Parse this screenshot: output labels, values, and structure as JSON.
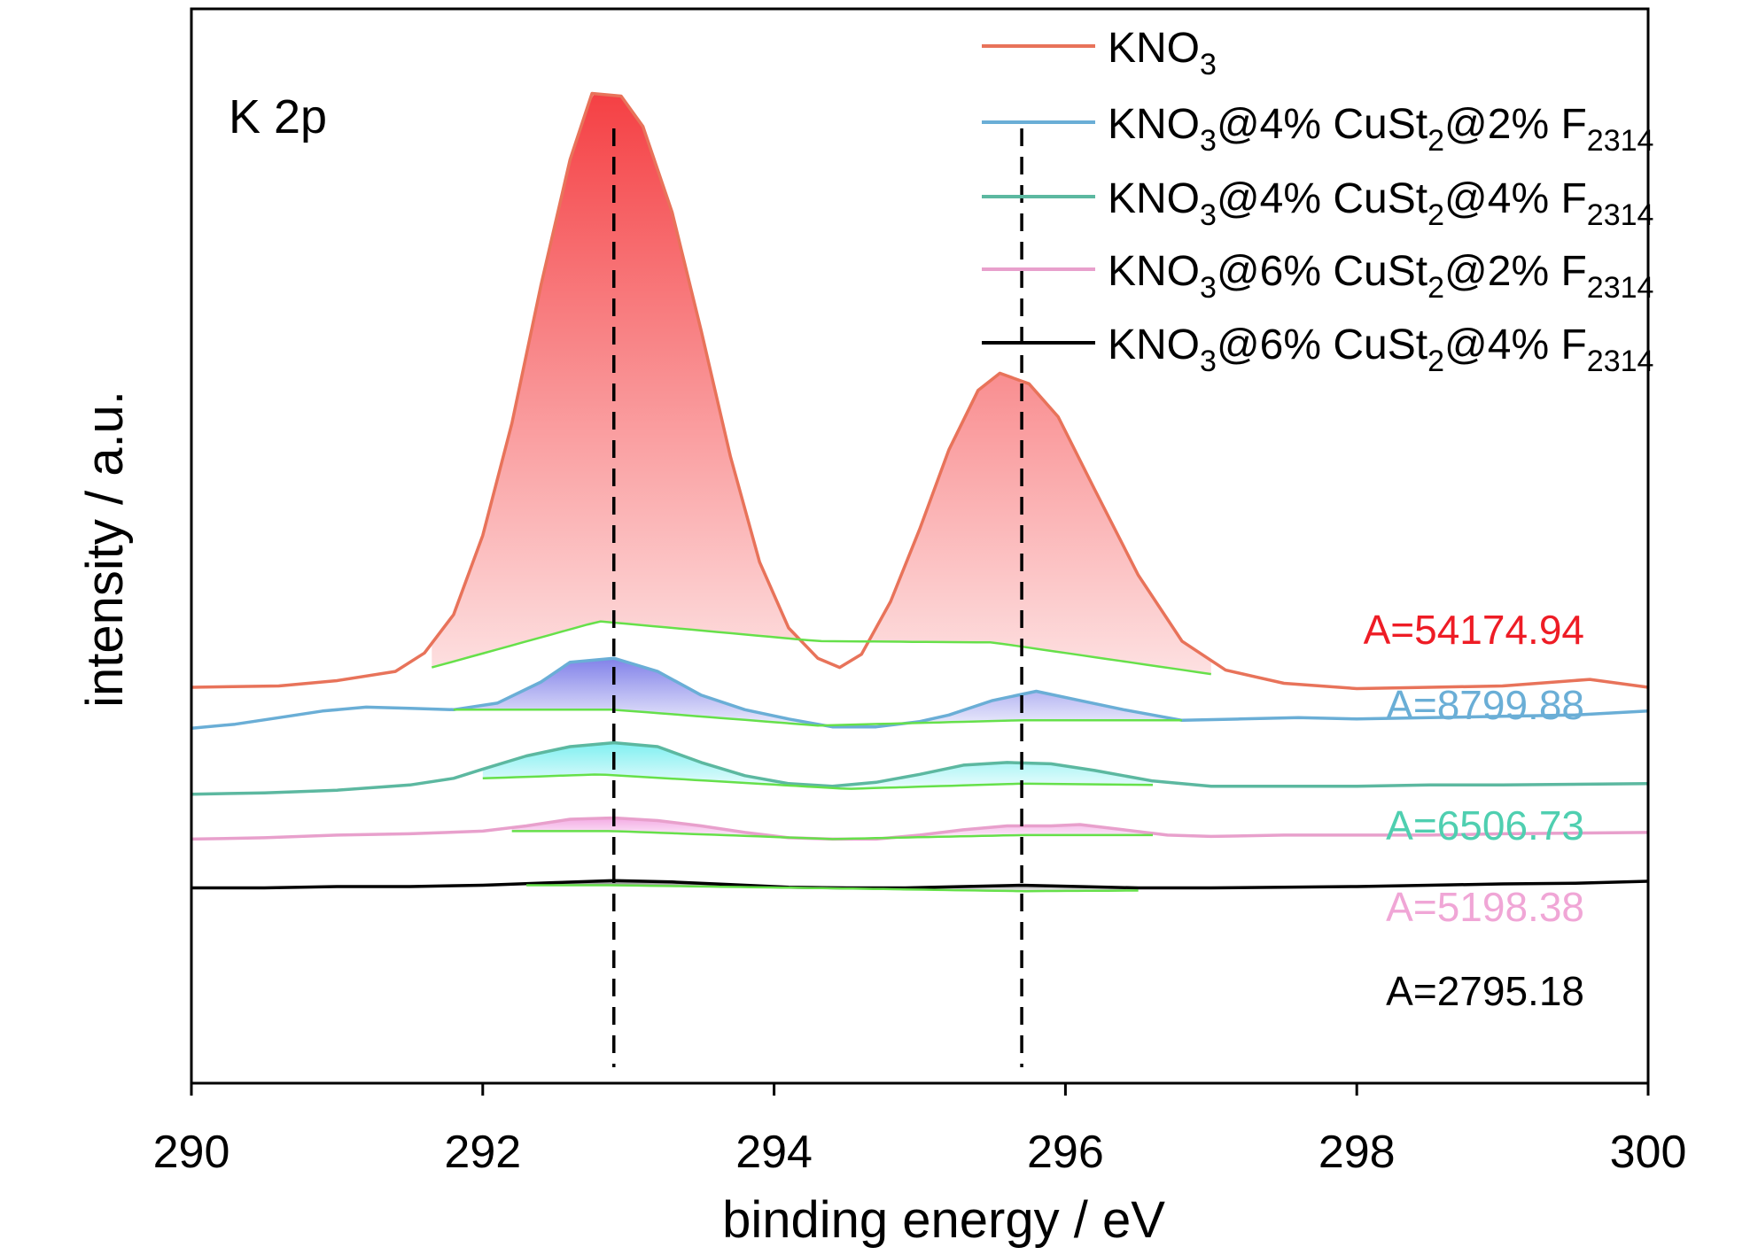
{
  "chart_data": {
    "type": "line",
    "annotation": "K 2p",
    "xlabel": "binding energy / eV",
    "ylabel": "intensity / a.u.",
    "xlim": [
      290,
      300
    ],
    "x_ticks": [
      290,
      292,
      294,
      296,
      298,
      300
    ],
    "x_tick_labels": [
      "290",
      "292",
      "294",
      "296",
      "298",
      "300"
    ],
    "y_ticks_shown": false,
    "grid": false,
    "legend_position": "top-right",
    "peak_markers": [
      {
        "x": 292.9,
        "style": "dashed"
      },
      {
        "x": 295.7,
        "style": "dashed"
      }
    ],
    "series": [
      {
        "legend": {
          "base": "KNO",
          "sub1": "3",
          "mid": "",
          "sub2": "",
          "tail": "",
          "sub3": ""
        },
        "area_label": "A=54174.94",
        "label_color": "#ee1c25",
        "line_color": "#e8735a",
        "fill_color": "#f4363a",
        "offset": 0.0,
        "x": [
          290.0,
          290.6,
          291.0,
          291.4,
          291.6,
          291.8,
          292.0,
          292.2,
          292.4,
          292.6,
          292.75,
          292.95,
          293.1,
          293.3,
          293.5,
          293.7,
          293.9,
          294.1,
          294.3,
          294.45,
          294.6,
          294.8,
          295.0,
          295.2,
          295.4,
          295.55,
          295.75,
          295.95,
          296.2,
          296.5,
          296.8,
          297.1,
          297.5,
          298.0,
          298.5,
          299.0,
          299.6,
          300.0
        ],
        "y": [
          0.0,
          0.1,
          0.5,
          1.2,
          2.6,
          5.5,
          11.5,
          20.0,
          30.5,
          40.0,
          45.0,
          44.8,
          42.5,
          36.0,
          27.0,
          17.5,
          9.5,
          4.5,
          2.2,
          1.5,
          2.5,
          6.5,
          12.0,
          18.0,
          22.5,
          23.8,
          23.0,
          20.5,
          15.0,
          8.5,
          3.5,
          1.3,
          0.3,
          -0.1,
          0.0,
          0.1,
          0.6,
          0.0
        ],
        "baseline_x": [
          291.65,
          292.8,
          294.3,
          295.5,
          297.0
        ],
        "baseline_y": [
          1.5,
          5.0,
          3.5,
          3.4,
          1.0
        ]
      },
      {
        "legend": {
          "base": "KNO",
          "sub1": "3",
          "mid": "@4% CuSt",
          "sub2": "2",
          "tail": "@2% F",
          "sub3": "2314"
        },
        "area_label": "A=8799.88",
        "label_color": "#6aaed6",
        "line_color": "#6aaed6",
        "fill_color": "#7b7be8",
        "offset": -3.1,
        "x": [
          290.0,
          290.3,
          290.6,
          290.9,
          291.2,
          291.5,
          291.8,
          292.1,
          292.4,
          292.6,
          292.9,
          293.2,
          293.5,
          293.8,
          294.1,
          294.4,
          294.7,
          295.0,
          295.2,
          295.5,
          295.8,
          296.1,
          296.4,
          296.8,
          297.2,
          297.6,
          298.0,
          298.5,
          299.0,
          299.5,
          300.0
        ],
        "y": [
          0.0,
          0.3,
          0.8,
          1.3,
          1.6,
          1.5,
          1.4,
          1.9,
          3.5,
          5.0,
          5.3,
          4.3,
          2.5,
          1.4,
          0.7,
          0.1,
          0.1,
          0.5,
          1.0,
          2.1,
          2.8,
          2.1,
          1.4,
          0.6,
          0.7,
          0.8,
          0.7,
          0.8,
          0.9,
          1.0,
          1.3
        ],
        "baseline_x": [
          291.8,
          292.9,
          294.3,
          295.7,
          296.8
        ],
        "baseline_y": [
          1.4,
          1.4,
          0.2,
          0.6,
          0.6
        ]
      },
      {
        "legend": {
          "base": "KNO",
          "sub1": "3",
          "mid": "@4% CuSt",
          "sub2": "2",
          "tail": "@4% F",
          "sub3": "2314"
        },
        "area_label": "A=6506.73",
        "label_color": "#4fcfb0",
        "line_color": "#5cb8a0",
        "fill_color": "#7aeff0",
        "offset": -8.1,
        "x": [
          290.0,
          290.5,
          291.0,
          291.5,
          291.8,
          292.0,
          292.3,
          292.6,
          292.9,
          293.2,
          293.5,
          293.8,
          294.1,
          294.4,
          294.7,
          295.0,
          295.3,
          295.6,
          295.9,
          296.2,
          296.6,
          297.0,
          297.5,
          298.0,
          298.5,
          299.0,
          300.0
        ],
        "y": [
          0.0,
          0.1,
          0.3,
          0.7,
          1.2,
          1.9,
          2.9,
          3.6,
          3.9,
          3.6,
          2.4,
          1.4,
          0.8,
          0.6,
          0.9,
          1.5,
          2.2,
          2.4,
          2.3,
          1.8,
          1.0,
          0.6,
          0.6,
          0.6,
          0.7,
          0.7,
          0.8
        ],
        "baseline_x": [
          292.0,
          292.8,
          294.5,
          295.7,
          296.6
        ],
        "baseline_y": [
          1.2,
          1.5,
          0.4,
          0.8,
          0.7
        ]
      },
      {
        "legend": {
          "base": "KNO",
          "sub1": "3",
          "mid": "@6% CuSt",
          "sub2": "2",
          "tail": "@2% F",
          "sub3": "2314"
        },
        "area_label": "A=5198.38",
        "label_color": "#f0a6d6",
        "line_color": "#e8a0cc",
        "fill_color": "#f3a7e3",
        "offset": -11.5,
        "x": [
          290.0,
          290.5,
          291.0,
          291.5,
          292.0,
          292.3,
          292.6,
          292.9,
          293.2,
          293.5,
          293.8,
          294.1,
          294.4,
          294.7,
          295.0,
          295.3,
          295.6,
          295.9,
          296.1,
          296.4,
          296.7,
          297.0,
          297.5,
          298.0,
          298.5,
          299.0,
          300.0
        ],
        "y": [
          0.0,
          0.1,
          0.3,
          0.4,
          0.6,
          1.0,
          1.5,
          1.6,
          1.4,
          1.0,
          0.5,
          0.1,
          0.0,
          0.0,
          0.3,
          0.7,
          1.0,
          1.0,
          1.1,
          0.7,
          0.3,
          0.2,
          0.3,
          0.3,
          0.3,
          0.4,
          0.5
        ],
        "baseline_x": [
          292.2,
          292.9,
          294.4,
          295.7,
          296.6
        ],
        "baseline_y": [
          0.6,
          0.6,
          0.0,
          0.3,
          0.3
        ]
      },
      {
        "legend": {
          "base": "KNO",
          "sub1": "3",
          "mid": "@6% CuSt",
          "sub2": "2",
          "tail": "@4% F",
          "sub3": "2314"
        },
        "area_label": "A=2795.18",
        "label_color": "#000000",
        "line_color": "#000000",
        "fill_color": "#808080",
        "offset": -15.2,
        "x": [
          290.0,
          290.5,
          291.0,
          291.5,
          292.0,
          292.5,
          292.9,
          293.3,
          293.7,
          294.1,
          294.5,
          294.9,
          295.3,
          295.7,
          296.1,
          296.5,
          297.0,
          297.5,
          298.0,
          298.5,
          299.0,
          299.5,
          300.0
        ],
        "y": [
          0.0,
          0.0,
          0.1,
          0.1,
          0.2,
          0.4,
          0.55,
          0.45,
          0.25,
          0.05,
          0.0,
          0.0,
          0.1,
          0.2,
          0.1,
          0.0,
          0.0,
          0.05,
          0.1,
          0.2,
          0.3,
          0.35,
          0.5
        ],
        "baseline_x": [
          292.3,
          292.9,
          294.5,
          295.7,
          296.5
        ],
        "baseline_y": [
          0.2,
          0.2,
          -0.05,
          -0.25,
          -0.2
        ]
      }
    ]
  },
  "style": {
    "baseline_color": "#66e04a",
    "marker_color": "#000000",
    "axis_color": "#000000"
  }
}
